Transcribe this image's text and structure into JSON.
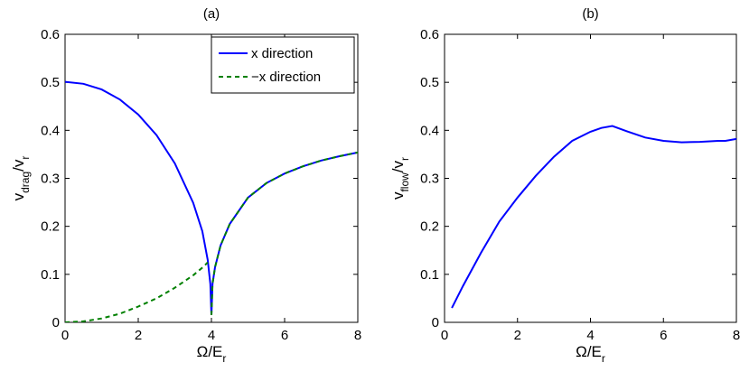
{
  "chart_data": [
    {
      "type": "line",
      "title": "(a)",
      "xlabel": {
        "main": "Ω/E",
        "sub": "r"
      },
      "ylabel": {
        "parts": [
          [
            "v",
            ""
          ],
          [
            "drag",
            "sub"
          ],
          [
            "/v",
            ""
          ],
          [
            "r",
            "sub"
          ]
        ]
      },
      "xlim": [
        0,
        8
      ],
      "ylim": [
        0,
        0.6
      ],
      "xticks": [
        "0",
        "2",
        "4",
        "6",
        "8"
      ],
      "yticks": [
        "0",
        "0.1",
        "0.2",
        "0.3",
        "0.4",
        "0.5",
        "0.6"
      ],
      "grid": false,
      "legend_position": "top-right",
      "series": [
        {
          "name": "x direction",
          "color": "#0000ff",
          "style": "solid",
          "x": [
            0,
            0.5,
            1.0,
            1.5,
            2.0,
            2.5,
            3.0,
            3.5,
            3.75,
            3.9,
            3.97,
            4.0,
            4.03,
            4.1,
            4.25,
            4.5,
            5.0,
            5.5,
            6.0,
            6.5,
            7.0,
            7.5,
            8.0
          ],
          "y": [
            0.501,
            0.497,
            0.485,
            0.464,
            0.433,
            0.39,
            0.331,
            0.249,
            0.19,
            0.13,
            0.08,
            0.015,
            0.08,
            0.115,
            0.16,
            0.205,
            0.26,
            0.29,
            0.31,
            0.325,
            0.337,
            0.346,
            0.354
          ]
        },
        {
          "name": "−x direction",
          "color": "#008000",
          "style": "dashed",
          "x": [
            0,
            0.5,
            1.0,
            1.5,
            2.0,
            2.5,
            3.0,
            3.5,
            3.8,
            3.9
          ],
          "y": [
            0,
            0.002,
            0.008,
            0.018,
            0.033,
            0.05,
            0.072,
            0.098,
            0.117,
            0.125
          ],
          "x2": [
            4.0,
            4.03,
            4.1,
            4.25,
            4.5,
            5.0,
            5.5,
            6.0,
            6.5,
            7.0,
            7.5,
            8.0
          ],
          "y2": [
            0.015,
            0.08,
            0.115,
            0.16,
            0.205,
            0.26,
            0.29,
            0.31,
            0.325,
            0.337,
            0.346,
            0.354
          ]
        }
      ]
    },
    {
      "type": "line",
      "title": "(b)",
      "xlabel": {
        "main": "Ω/E",
        "sub": "r"
      },
      "ylabel": {
        "parts": [
          [
            "v",
            ""
          ],
          [
            "flow",
            "sub"
          ],
          [
            "/v",
            ""
          ],
          [
            "r",
            "sub"
          ]
        ]
      },
      "xlim": [
        0,
        8
      ],
      "ylim": [
        0,
        0.6
      ],
      "xticks": [
        "0",
        "2",
        "4",
        "6",
        "8"
      ],
      "yticks": [
        "0",
        "0.1",
        "0.2",
        "0.3",
        "0.4",
        "0.5",
        "0.6"
      ],
      "grid": false,
      "series": [
        {
          "color": "#0000ff",
          "style": "solid",
          "x": [
            0.2,
            0.5,
            1.0,
            1.5,
            2.0,
            2.5,
            3.0,
            3.5,
            4.0,
            4.3,
            4.6,
            5.0,
            5.5,
            6.0,
            6.5,
            7.0,
            7.5,
            7.7,
            8.0
          ],
          "y": [
            0.03,
            0.075,
            0.145,
            0.21,
            0.26,
            0.305,
            0.345,
            0.378,
            0.397,
            0.405,
            0.409,
            0.398,
            0.385,
            0.378,
            0.375,
            0.376,
            0.378,
            0.378,
            0.382
          ]
        }
      ]
    }
  ]
}
